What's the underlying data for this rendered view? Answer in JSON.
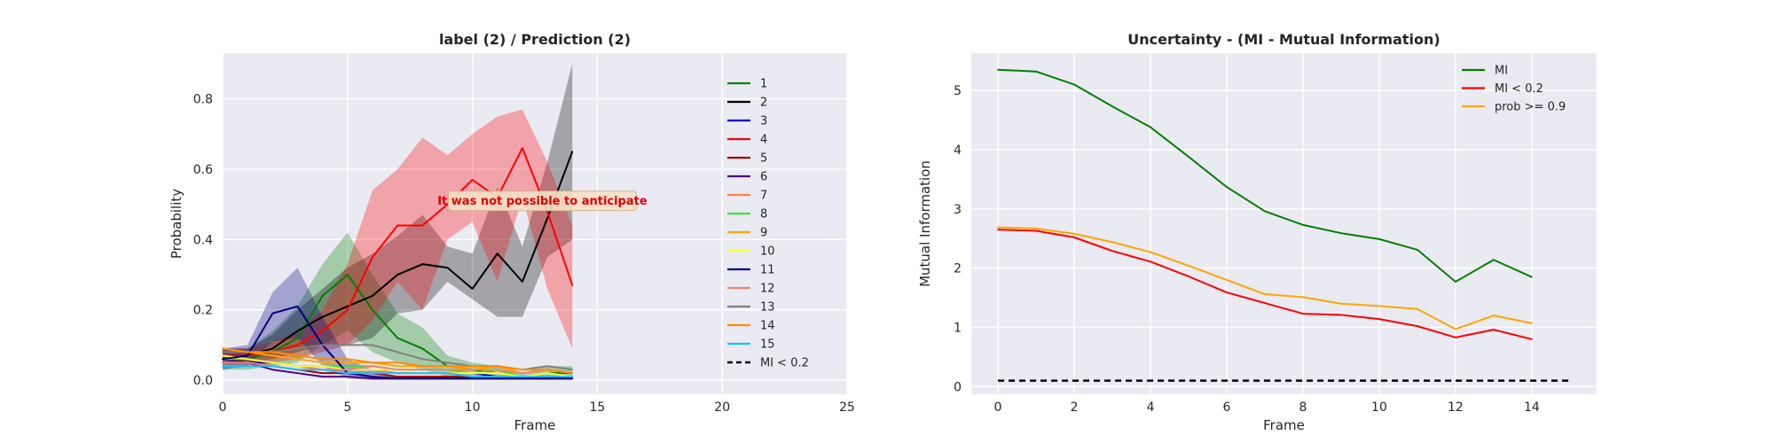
{
  "chart_data": [
    {
      "type": "line",
      "title": "label (2) / Prediction (2)",
      "xlabel": "Frame",
      "ylabel": "Probability",
      "xlim": [
        0,
        25
      ],
      "ylim": [
        -0.04,
        0.93
      ],
      "xticks": [
        0,
        5,
        10,
        15,
        20,
        25
      ],
      "yticks": [
        0.0,
        0.2,
        0.4,
        0.6,
        0.8
      ],
      "ytick_labels": [
        "0.0",
        "0.2",
        "0.4",
        "0.6",
        "0.8"
      ],
      "grid": true,
      "legend_position": "right",
      "x": [
        0,
        1,
        2,
        3,
        4,
        5,
        6,
        7,
        8,
        9,
        10,
        11,
        12,
        13,
        14
      ],
      "series": [
        {
          "name": "1",
          "color": "#008000",
          "values": [
            0.06,
            0.06,
            0.08,
            0.12,
            0.24,
            0.3,
            0.2,
            0.12,
            0.09,
            0.04,
            0.03,
            0.02,
            0.01,
            0.02,
            0.02
          ],
          "band_lower": [
            0.03,
            0.03,
            0.04,
            0.05,
            0.1,
            0.14,
            0.08,
            0.05,
            0.03,
            0.01,
            0.01,
            0.005,
            0.005,
            0.005,
            0.005
          ],
          "band_upper": [
            0.09,
            0.09,
            0.14,
            0.21,
            0.33,
            0.42,
            0.3,
            0.19,
            0.15,
            0.07,
            0.05,
            0.04,
            0.02,
            0.04,
            0.04
          ]
        },
        {
          "name": "2",
          "color": "#000000",
          "values": [
            0.07,
            0.07,
            0.09,
            0.14,
            0.18,
            0.21,
            0.24,
            0.3,
            0.33,
            0.32,
            0.26,
            0.36,
            0.28,
            0.46,
            0.65
          ],
          "band_lower": [
            0.05,
            0.05,
            0.06,
            0.08,
            0.1,
            0.1,
            0.12,
            0.19,
            0.2,
            0.28,
            0.23,
            0.18,
            0.18,
            0.35,
            0.4
          ],
          "band_upper": [
            0.09,
            0.09,
            0.13,
            0.2,
            0.26,
            0.32,
            0.36,
            0.41,
            0.47,
            0.38,
            0.36,
            0.55,
            0.38,
            0.62,
            0.9
          ]
        },
        {
          "name": "3",
          "color": "#0000cc",
          "values": [
            0.05,
            0.05,
            0.05,
            0.04,
            0.04,
            0.03,
            0.03,
            0.02,
            0.02,
            0.02,
            0.02,
            0.01,
            0.01,
            0.01,
            0.01
          ]
        },
        {
          "name": "4",
          "color": "#ff0000",
          "values": [
            0.07,
            0.07,
            0.08,
            0.1,
            0.14,
            0.2,
            0.35,
            0.44,
            0.44,
            0.5,
            0.57,
            0.52,
            0.66,
            0.48,
            0.27
          ],
          "band_lower": [
            0.05,
            0.05,
            0.05,
            0.06,
            0.08,
            0.1,
            0.17,
            0.28,
            0.2,
            0.4,
            0.45,
            0.28,
            0.52,
            0.26,
            0.09
          ],
          "band_upper": [
            0.09,
            0.09,
            0.11,
            0.14,
            0.2,
            0.33,
            0.54,
            0.6,
            0.69,
            0.64,
            0.7,
            0.75,
            0.77,
            0.62,
            0.44
          ]
        },
        {
          "name": "5",
          "color": "#a00000",
          "values": [
            0.06,
            0.05,
            0.04,
            0.03,
            0.02,
            0.02,
            0.02,
            0.01,
            0.01,
            0.01,
            0.01,
            0.01,
            0.01,
            0.01,
            0.01
          ]
        },
        {
          "name": "6",
          "color": "#4b0082",
          "values": [
            0.06,
            0.05,
            0.03,
            0.02,
            0.01,
            0.01,
            0.005,
            0.005,
            0.005,
            0.005,
            0.005,
            0.005,
            0.005,
            0.005,
            0.005
          ]
        },
        {
          "name": "7",
          "color": "#ff7f50",
          "values": [
            0.07,
            0.06,
            0.05,
            0.04,
            0.03,
            0.03,
            0.03,
            0.02,
            0.02,
            0.02,
            0.02,
            0.02,
            0.01,
            0.02,
            0.01
          ]
        },
        {
          "name": "8",
          "color": "#32e632",
          "values": [
            0.06,
            0.06,
            0.05,
            0.04,
            0.04,
            0.04,
            0.04,
            0.03,
            0.03,
            0.03,
            0.02,
            0.03,
            0.01,
            0.02,
            0.01
          ]
        },
        {
          "name": "9",
          "color": "#ffa500",
          "values": [
            0.09,
            0.08,
            0.07,
            0.06,
            0.05,
            0.05,
            0.05,
            0.04,
            0.04,
            0.04,
            0.03,
            0.04,
            0.02,
            0.03,
            0.02
          ]
        },
        {
          "name": "10",
          "color": "#ffff33",
          "values": [
            0.07,
            0.06,
            0.05,
            0.04,
            0.04,
            0.03,
            0.03,
            0.03,
            0.02,
            0.02,
            0.02,
            0.02,
            0.01,
            0.02,
            0.01
          ]
        },
        {
          "name": "11",
          "color": "#000080",
          "values": [
            0.06,
            0.07,
            0.19,
            0.21,
            0.1,
            0.02,
            0.01,
            0.005,
            0.005,
            0.005,
            0.005,
            0.005,
            0.005,
            0.005,
            0.005
          ],
          "band_lower": [
            0.03,
            0.04,
            0.11,
            0.12,
            0.04,
            0.005,
            0.0,
            0.0,
            0.0,
            0.0,
            0.0,
            0.0,
            0.0,
            0.0,
            0.0
          ],
          "band_upper": [
            0.09,
            0.1,
            0.25,
            0.32,
            0.18,
            0.06,
            0.03,
            0.01,
            0.01,
            0.01,
            0.01,
            0.01,
            0.01,
            0.01,
            0.01
          ]
        },
        {
          "name": "12",
          "color": "#fa8072",
          "values": [
            0.05,
            0.05,
            0.04,
            0.03,
            0.03,
            0.03,
            0.04,
            0.03,
            0.03,
            0.03,
            0.03,
            0.03,
            0.02,
            0.03,
            0.02
          ]
        },
        {
          "name": "13",
          "color": "#808080",
          "values": [
            0.08,
            0.08,
            0.08,
            0.09,
            0.1,
            0.1,
            0.1,
            0.08,
            0.06,
            0.05,
            0.04,
            0.04,
            0.03,
            0.04,
            0.03
          ]
        },
        {
          "name": "14",
          "color": "#ff8c00",
          "values": [
            0.09,
            0.08,
            0.08,
            0.07,
            0.06,
            0.06,
            0.05,
            0.05,
            0.04,
            0.04,
            0.04,
            0.04,
            0.03,
            0.03,
            0.02
          ]
        },
        {
          "name": "15",
          "color": "#1ebeff",
          "values": [
            0.04,
            0.04,
            0.04,
            0.03,
            0.03,
            0.02,
            0.02,
            0.02,
            0.02,
            0.02,
            0.01,
            0.01,
            0.01,
            0.01,
            0.01
          ]
        }
      ],
      "reference_line": {
        "name": "MI < 0.2",
        "color": "#000000",
        "dash": true
      },
      "annotation": {
        "text": "It was not possible to anticipate",
        "x": 12.8,
        "y": 0.51,
        "color": "#e00000"
      }
    },
    {
      "type": "line",
      "title": "Uncertainty - (MI - Mutual Information)",
      "xlabel": "Frame",
      "ylabel": "Mutual Information",
      "xlim": [
        -0.7,
        15.7
      ],
      "ylim": [
        -0.13,
        5.63
      ],
      "xticks": [
        0,
        2,
        4,
        6,
        8,
        10,
        12,
        14
      ],
      "yticks": [
        0,
        1,
        2,
        3,
        4,
        5
      ],
      "grid": true,
      "legend_position": "top-right",
      "x": [
        0,
        1,
        2,
        3,
        4,
        5,
        6,
        7,
        8,
        9,
        10,
        11,
        12,
        13,
        14
      ],
      "series": [
        {
          "name": "MI",
          "color": "#008000",
          "values": [
            5.35,
            5.32,
            5.1,
            4.73,
            4.38,
            3.88,
            3.37,
            2.96,
            2.73,
            2.59,
            2.49,
            2.31,
            1.77,
            2.14,
            1.85
          ]
        },
        {
          "name": "MI < 0.2",
          "color": "#ff0000",
          "values": [
            2.65,
            2.63,
            2.52,
            2.29,
            2.11,
            1.86,
            1.59,
            1.41,
            1.23,
            1.21,
            1.14,
            1.02,
            0.83,
            0.96,
            0.8
          ]
        },
        {
          "name": "prob >= 0.9",
          "color": "#ffa500",
          "values": [
            2.69,
            2.67,
            2.58,
            2.44,
            2.27,
            2.04,
            1.8,
            1.56,
            1.51,
            1.4,
            1.36,
            1.31,
            0.97,
            1.2,
            1.07
          ]
        }
      ],
      "reference_line": {
        "y": 0.1,
        "x_range": [
          0,
          15
        ],
        "color": "#000000",
        "dash": true
      }
    }
  ]
}
